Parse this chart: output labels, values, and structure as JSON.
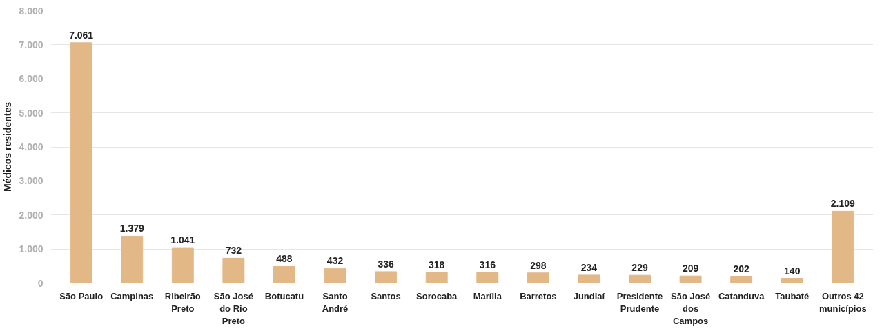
{
  "chart_data": {
    "type": "bar",
    "ylabel": "Médicos residentes",
    "categories": [
      "São Paulo",
      "Campinas",
      "Ribeirão Preto",
      "São José do Rio Preto",
      "Botucatu",
      "Santo André",
      "Santos",
      "Sorocaba",
      "Marília",
      "Barretos",
      "Jundiaí",
      "Presidente Prudente",
      "São José dos Campos",
      "Catanduva",
      "Taubaté",
      "Outros 42 municípios"
    ],
    "values": [
      7061,
      1379,
      1041,
      732,
      488,
      432,
      336,
      318,
      316,
      298,
      234,
      229,
      209,
      202,
      140,
      2109
    ],
    "value_labels": [
      "7.061",
      "1.379",
      "1.041",
      "732",
      "488",
      "432",
      "336",
      "318",
      "316",
      "298",
      "234",
      "229",
      "209",
      "202",
      "140",
      "2.109"
    ],
    "color": "#e2b887",
    "ylim": [
      0,
      8000
    ],
    "yticks": [
      0,
      {
        "value": 1000,
        "label": "1.000"
      },
      {
        "value": 2000,
        "label": "2.000"
      },
      {
        "value": 3000,
        "label": "3.000"
      },
      {
        "value": 4000,
        "label": "4.000"
      },
      {
        "value": 5000,
        "label": "5.000"
      },
      {
        "value": 6000,
        "label": "6.000"
      },
      {
        "value": 7000,
        "label": "7.000"
      },
      {
        "value": 8000,
        "label": "8.000"
      }
    ],
    "grid": "y"
  }
}
